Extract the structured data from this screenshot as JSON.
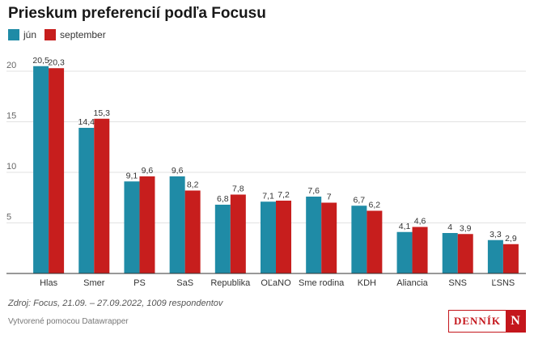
{
  "chart_data": {
    "type": "bar",
    "title": "Prieskum preferencií podľa Focusu",
    "categories": [
      "Hlas",
      "Smer",
      "PS",
      "SaS",
      "Republika",
      "OĽaNO",
      "Sme rodina",
      "KDH",
      "Aliancia",
      "SNS",
      "ĽSNS"
    ],
    "series": [
      {
        "name": "jún",
        "color": "#1f8ba6",
        "values": [
          20.5,
          14.4,
          9.1,
          9.6,
          6.8,
          7.1,
          7.6,
          6.7,
          4.1,
          4.0,
          3.3
        ],
        "labels": [
          "20,5",
          "14,4",
          "9,1",
          "9,6",
          "6,8",
          "7,1",
          "7,6",
          "6,7",
          "4,1",
          "4",
          "3,3"
        ]
      },
      {
        "name": "september",
        "color": "#c71e1d",
        "values": [
          20.3,
          15.3,
          9.6,
          8.2,
          7.8,
          7.2,
          7.0,
          6.2,
          4.6,
          3.9,
          2.9
        ],
        "labels": [
          "20,3",
          "15,3",
          "9,6",
          "8,2",
          "7,8",
          "7,2",
          "7",
          "6,2",
          "4,6",
          "3,9",
          "2,9"
        ]
      }
    ],
    "ylim": [
      0,
      22
    ],
    "yticks": [
      5,
      10,
      15,
      20
    ],
    "grid": true,
    "legend_position": "top-left"
  },
  "source": "Zdroj: Focus, 21.09. – 27.09.2022, 1009 respondentov",
  "credit": "Vytvorené pomocou Datawrapper",
  "brand": {
    "text": "DENNÍK",
    "mark": "N"
  }
}
